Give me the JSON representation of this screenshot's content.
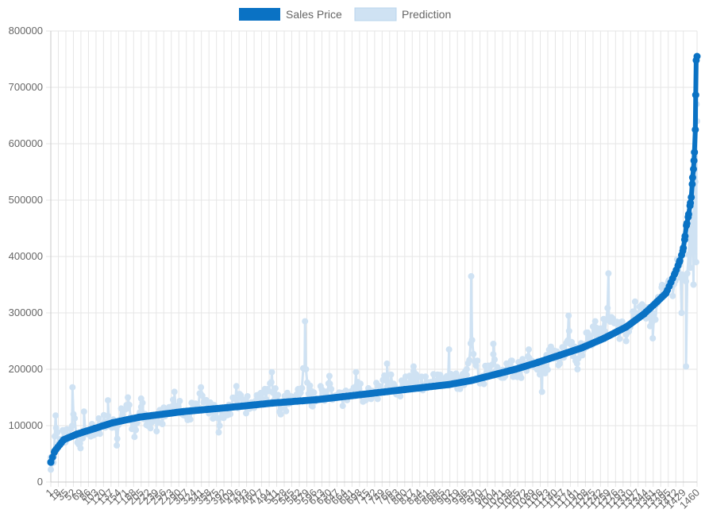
{
  "chart_data": {
    "type": "line",
    "legend": {
      "position": "top-center",
      "items": [
        {
          "label": "Sales Price",
          "color": "#0a72c4"
        },
        {
          "label": "Prediction",
          "color": "#cfe2f3"
        }
      ]
    },
    "y_ticks": [
      "0",
      "100000",
      "200000",
      "300000",
      "400000",
      "500000",
      "600000",
      "700000",
      "800000"
    ],
    "ylim": [
      0,
      800000
    ],
    "x_count": 1460,
    "x_tick_labels": [
      "1",
      "18",
      "35",
      "52",
      "69",
      "86",
      "103",
      "120",
      "137",
      "154",
      "171",
      "188",
      "205",
      "222",
      "239",
      "256",
      "273",
      "290",
      "307",
      "324",
      "341",
      "358",
      "375",
      "392",
      "409",
      "426",
      "443",
      "460",
      "477",
      "494",
      "511",
      "528",
      "545",
      "562",
      "579",
      "596",
      "613",
      "630",
      "647",
      "664",
      "681",
      "698",
      "715",
      "732",
      "749",
      "766",
      "783",
      "800",
      "817",
      "834",
      "851",
      "868",
      "885",
      "902",
      "919",
      "936",
      "953",
      "970",
      "987",
      "1004",
      "1021",
      "1038",
      "1055",
      "1072",
      "1089",
      "1106",
      "1123",
      "1140",
      "1157",
      "1174",
      "1191",
      "1208",
      "1225",
      "1242",
      "1259",
      "1276",
      "1293",
      "1310",
      "1327",
      "1344",
      "1361",
      "1378",
      "1395",
      "1412",
      "1429",
      "1460"
    ],
    "grid": true,
    "series": [
      {
        "name": "Sales Price",
        "color": "#0a72c4",
        "x": [
          1,
          10,
          30,
          60,
          100,
          140,
          200,
          300,
          400,
          500,
          600,
          700,
          800,
          900,
          950,
          1000,
          1050,
          1100,
          1150,
          1200,
          1250,
          1300,
          1340,
          1370,
          1390,
          1410,
          1420,
          1428,
          1432,
          1436,
          1440,
          1444,
          1447,
          1450,
          1452,
          1454,
          1456,
          1458,
          1460
        ],
        "values": [
          35000,
          55000,
          75000,
          85000,
          95000,
          105000,
          115000,
          125000,
          132000,
          140000,
          146000,
          155000,
          164000,
          173000,
          180000,
          190000,
          200000,
          212000,
          225000,
          238000,
          255000,
          275000,
          298000,
          320000,
          335000,
          370000,
          390000,
          410000,
          430000,
          455000,
          470000,
          490000,
          505000,
          540000,
          555000,
          585000,
          625000,
          748000,
          755000
        ]
      },
      {
        "name": "Prediction",
        "color": "#cfe2f3",
        "x": [
          1,
          8,
          12,
          20,
          28,
          40,
          50,
          60,
          68,
          76,
          90,
          110,
          130,
          150,
          160,
          175,
          190,
          205,
          220,
          240,
          255,
          280,
          310,
          340,
          360,
          380,
          420,
          450,
          470,
          500,
          520,
          540,
          560,
          575,
          590,
          610,
          630,
          660,
          690,
          710,
          740,
          760,
          790,
          820,
          850,
          880,
          900,
          920,
          940,
          950,
          970,
          1000,
          1020,
          1040,
          1060,
          1080,
          1100,
          1110,
          1130,
          1150,
          1170,
          1190,
          1210,
          1230,
          1240,
          1260,
          1280,
          1300,
          1320,
          1340,
          1360,
          1380,
          1395,
          1405,
          1415,
          1425,
          1435,
          1445,
          1452,
          1458,
          1460
        ],
        "values": [
          22000,
          45000,
          118000,
          70000,
          92000,
          80000,
          168000,
          85000,
          60000,
          125000,
          92000,
          100000,
          145000,
          65000,
          130000,
          150000,
          80000,
          148000,
          100000,
          90000,
          118000,
          160000,
          110000,
          168000,
          132000,
          88000,
          170000,
          130000,
          150000,
          195000,
          120000,
          150000,
          165000,
          285000,
          135000,
          170000,
          188000,
          135000,
          195000,
          145000,
          170000,
          210000,
          165000,
          205000,
          175000,
          190000,
          235000,
          170000,
          200000,
          365000,
          175000,
          245000,
          185000,
          215000,
          190000,
          235000,
          205000,
          160000,
          240000,
          210000,
          295000,
          200000,
          265000,
          285000,
          255000,
          370000,
          280000,
          250000,
          320000,
          300000,
          255000,
          345000,
          355000,
          330000,
          395000,
          300000,
          205000,
          380000,
          350000,
          390000,
          640000
        ]
      }
    ]
  }
}
